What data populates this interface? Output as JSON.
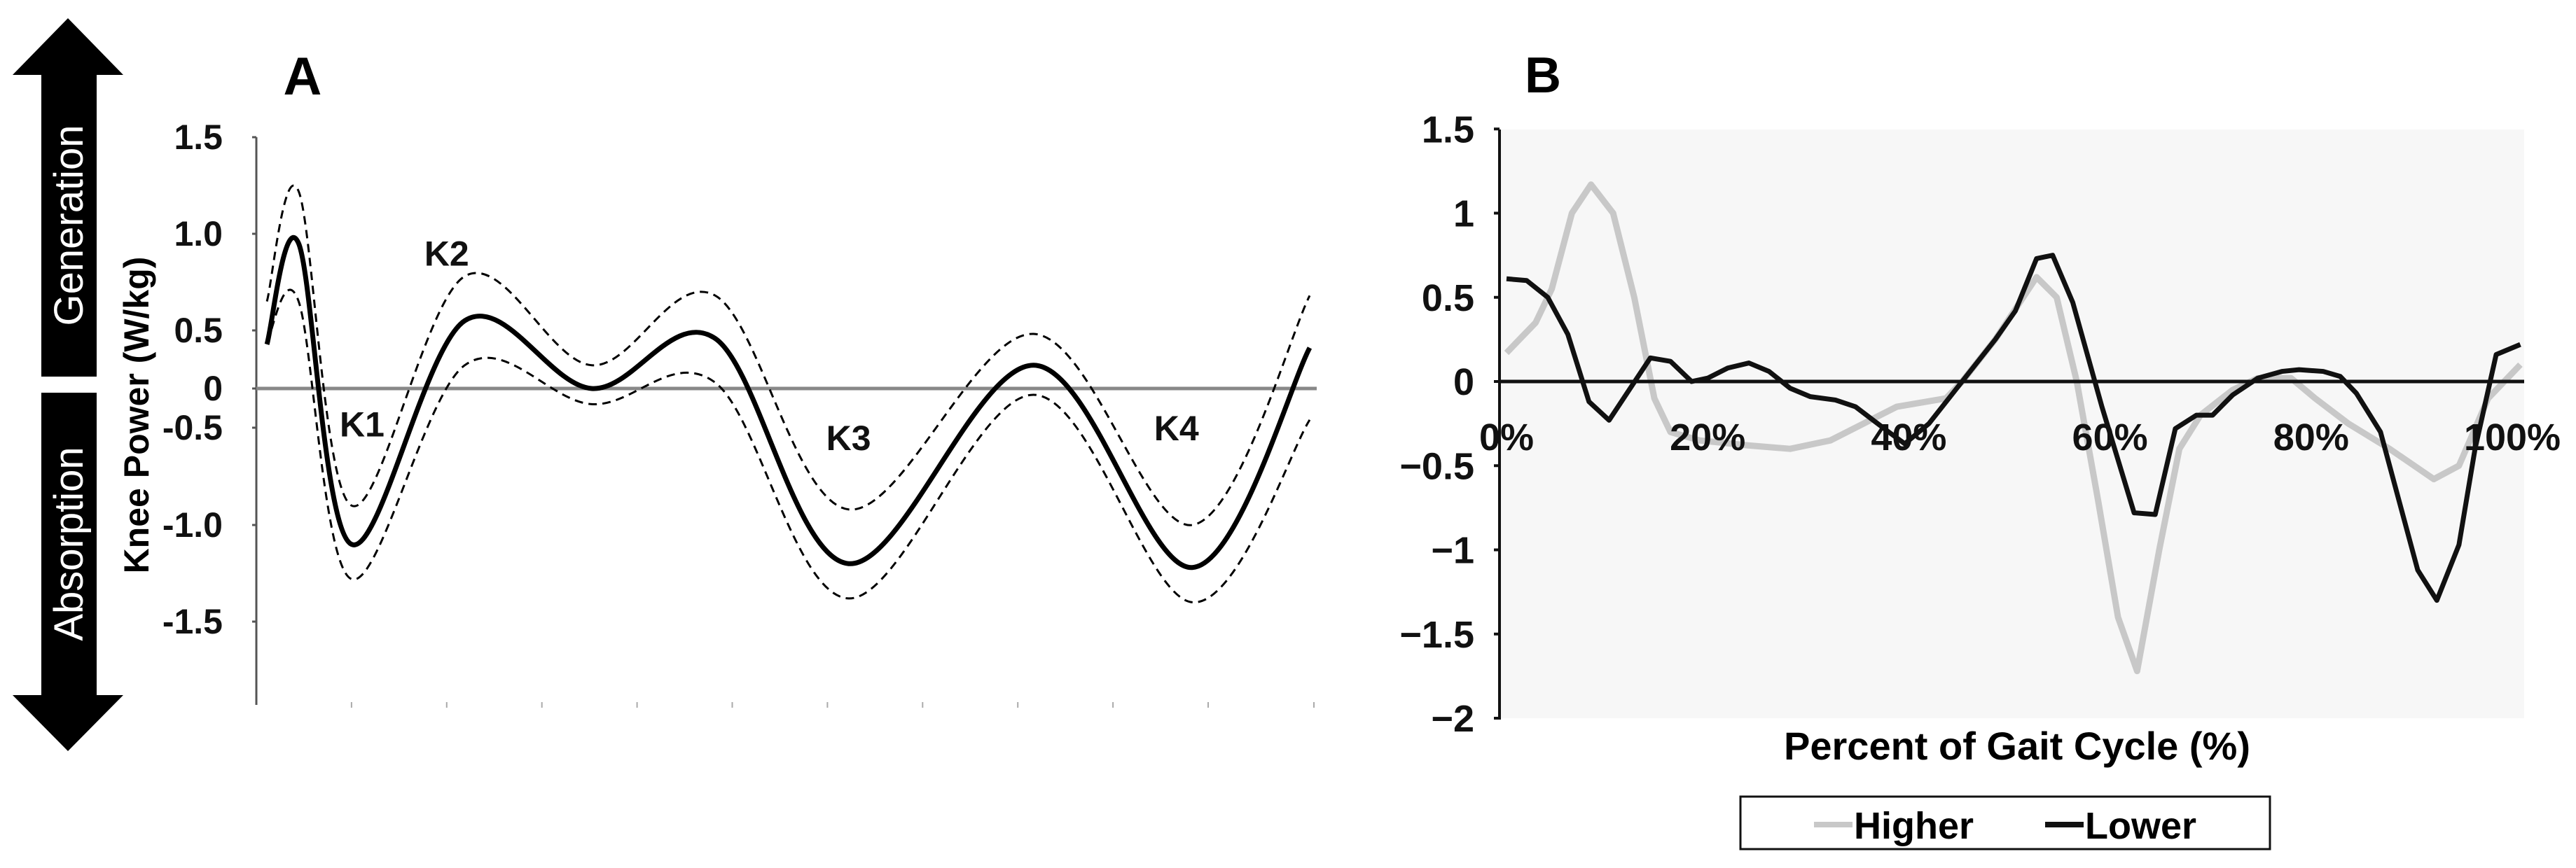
{
  "arrows": {
    "up_label": "Generation",
    "down_label": "Absorption"
  },
  "chart_data": [
    {
      "panel": "A",
      "type": "line",
      "title": "A",
      "ylabel": "Knee Power (W/kg)",
      "xlabel": "",
      "ylim": [
        -1.8,
        1.5
      ],
      "yticks": [
        "1.5",
        "1.0",
        "0.5",
        "0",
        "-0.5",
        "-1.0",
        "-1.5"
      ],
      "ytick_values": [
        1.5,
        1.0,
        0.5,
        0,
        -0.5,
        -1.0,
        -1.5
      ],
      "xlim": [
        0,
        100
      ],
      "x_minor_ticks": [
        9,
        18,
        27,
        36,
        45,
        54,
        63,
        72,
        81,
        90,
        100
      ],
      "annotations": [
        {
          "text": "K1",
          "x": 10,
          "y": -0.45
        },
        {
          "text": "K2",
          "x": 18,
          "y": 0.9
        },
        {
          "text": "K3",
          "x": 56,
          "y": -0.55
        },
        {
          "text": "K4",
          "x": 87,
          "y": -0.5
        }
      ],
      "series": [
        {
          "name": "mean",
          "style": "solid",
          "x": [
            1,
            4,
            9,
            19.7,
            31.7,
            43.4,
            56,
            73.5,
            88.5,
            99.6
          ],
          "y": [
            0.38,
            0.95,
            -1.1,
            0.55,
            0.0,
            0.43,
            -1.2,
            0.2,
            -1.22,
            0.35
          ]
        },
        {
          "name": "upper",
          "style": "dashed",
          "x": [
            1,
            4,
            9,
            19.7,
            31.7,
            43.4,
            56,
            73.5,
            88.5,
            99.6
          ],
          "y": [
            0.65,
            1.22,
            -0.9,
            0.78,
            0.2,
            0.68,
            -0.92,
            0.47,
            -1.0,
            0.68
          ]
        },
        {
          "name": "lower",
          "style": "dashed",
          "x": [
            1,
            4,
            9,
            19.7,
            31.7,
            43.4,
            56,
            73.5,
            88.5,
            99.6
          ],
          "y": [
            0.4,
            0.65,
            -1.28,
            0.2,
            -0.2,
            0.05,
            -1.38,
            -0.08,
            -1.4,
            -0.4
          ]
        }
      ]
    },
    {
      "panel": "B",
      "type": "line",
      "title": "B",
      "xlabel": "Percent of Gait Cycle (%)",
      "ylabel": "",
      "ylim": [
        -2,
        1.5
      ],
      "yticks": [
        "1.5",
        "1",
        "0.5",
        "0",
        "−0.5",
        "−1",
        "−1.5",
        "−2"
      ],
      "ytick_values": [
        1.5,
        1,
        0.5,
        0,
        -0.5,
        -1,
        -1.5,
        -2
      ],
      "xlim": [
        0,
        100
      ],
      "xticks": [
        "0%",
        "20%",
        "40%",
        "60%",
        "80%",
        "100%"
      ],
      "xtick_values": [
        0,
        20,
        40,
        60,
        80,
        100
      ],
      "legend": {
        "placement": "bottom-center",
        "entries": [
          "Higher",
          "Lower"
        ]
      },
      "colors": {
        "Higher": "#c8c8c8",
        "Lower": "#111111"
      },
      "series": [
        {
          "name": "Higher",
          "x": [
            0,
            2.9,
            4.5,
            6.5,
            8.4,
            10.6,
            12.7,
            14.7,
            16.3,
            19.2,
            24.1,
            28.2,
            32.2,
            35.5,
            38.8,
            43.7,
            45.3,
            48.6,
            52.7,
            54.7,
            56.7,
            58.8,
            60.8,
            62.7,
            64.9,
            66.9,
            69,
            72.2,
            74.7,
            78,
            80.4,
            83.7,
            87.8,
            92.2,
            94.7,
            97.6,
            100,
            100.8
          ],
          "y": [
            0.17,
            0.35,
            0.55,
            1.0,
            1.17,
            1.0,
            0.5,
            -0.1,
            -0.3,
            -0.35,
            -0.38,
            -0.4,
            -0.35,
            -0.25,
            -0.15,
            -0.1,
            0,
            0.25,
            0.62,
            0.5,
            0,
            -0.7,
            -1.4,
            -1.72,
            -1.0,
            -0.4,
            -0.2,
            -0.05,
            0.02,
            0.02,
            -0.1,
            -0.25,
            -0.4,
            -0.58,
            -0.5,
            -0.1,
            0.05,
            0.1
          ]
        },
        {
          "name": "Lower",
          "x": [
            0,
            2,
            4.1,
            6.1,
            8.2,
            10.2,
            14.3,
            16.3,
            18.4,
            20,
            22,
            24.1,
            26.1,
            28.2,
            30.2,
            32.7,
            34.7,
            38,
            39.6,
            42,
            45.3,
            48.6,
            50.6,
            52.7,
            54.3,
            56.3,
            59.2,
            62.4,
            64.5,
            66.5,
            68.6,
            70.2,
            72.2,
            74.7,
            77.1,
            78.8,
            81.2,
            82.9,
            84.5,
            86.9,
            90.6,
            92.5,
            94.7,
            96.3,
            98.4,
            100.8
          ],
          "y": [
            0.61,
            0.6,
            0.5,
            0.28,
            -0.12,
            -0.23,
            0.14,
            0.12,
            0.0,
            0.02,
            0.08,
            0.11,
            0.06,
            -0.04,
            -0.09,
            -0.11,
            -0.15,
            -0.3,
            -0.37,
            -0.25,
            0.0,
            0.25,
            0.42,
            0.73,
            0.75,
            0.47,
            -0.15,
            -0.78,
            -0.79,
            -0.28,
            -0.2,
            -0.2,
            -0.08,
            0.02,
            0.06,
            0.07,
            0.06,
            0.03,
            -0.07,
            -0.3,
            -1.12,
            -1.3,
            -0.97,
            -0.4,
            0.16,
            0.22
          ]
        }
      ]
    }
  ]
}
